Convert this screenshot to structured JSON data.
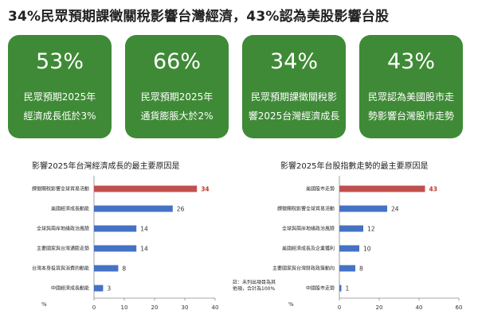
{
  "headline": "34%民眾預期課徵關稅影響台灣經濟，43%認為美股影響台股",
  "cards": [
    {
      "pct": "53%",
      "desc_line1": "民眾預期2025年",
      "desc_line2": "經濟成長低於3%"
    },
    {
      "pct": "66%",
      "desc_line1": "民眾預期2025年",
      "desc_line2": "通貨膨脹大於2%"
    },
    {
      "pct": "34%",
      "desc_line1": "民眾預期課徵關稅影",
      "desc_line2": "響2025台灣經濟成長"
    },
    {
      "pct": "43%",
      "desc_line1": "民眾認為美國股市走",
      "desc_line2": "勢影響台灣股市走勢"
    }
  ],
  "colors": {
    "card_green": "#3f8a36",
    "bar_blue": "#4472c4",
    "bar_red": "#c0504d",
    "label_red": "#c0392b"
  },
  "chart_data": [
    {
      "type": "bar",
      "orientation": "horizontal",
      "title": "影響2025年台灣經濟成長的最主要原因是",
      "unit_label": "%",
      "categories": [
        "課徵關稅影響全球貿易活動",
        "美國經濟成長動能",
        "全球與兩岸地緣政治風險",
        "主要國家與台灣通膨走勢",
        "台灣本身投資與消費的動能",
        "中國經濟成長動能"
      ],
      "values": [
        34,
        26,
        14,
        14,
        8,
        3
      ],
      "highlight_index": 0,
      "xlim": [
        0,
        40
      ],
      "xticks": [
        0,
        10,
        20,
        30,
        40
      ]
    },
    {
      "type": "bar",
      "orientation": "horizontal",
      "title": "影響2025年台股指數走勢的最主要原因是",
      "unit_label": "%",
      "categories": [
        "美國股市走勢",
        "課徵關稅影響全球貿易活動",
        "全球與兩岸地緣政治風險",
        "美國經濟成長及企業獲利",
        "主要國家與台灣財政政策動向",
        "中國股市走勢"
      ],
      "values": [
        43,
        24,
        12,
        10,
        8,
        1
      ],
      "highlight_index": 0,
      "xlim": [
        0,
        60
      ],
      "xticks": [
        0,
        20,
        40,
        60
      ],
      "note_line1": "註：未列出項目為其",
      "note_line2": "他項，合計為100%"
    }
  ]
}
